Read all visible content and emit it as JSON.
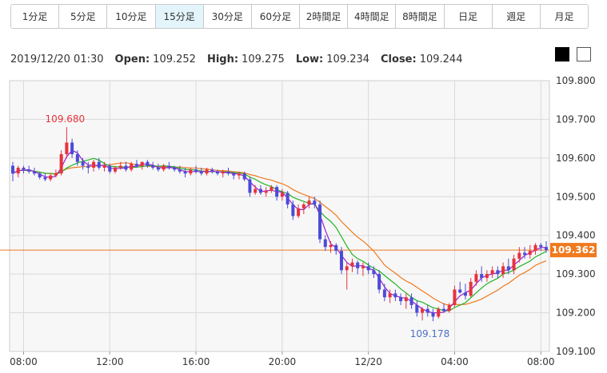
{
  "timeframes": [
    {
      "label": "1分足",
      "active": false
    },
    {
      "label": "5分足",
      "active": false
    },
    {
      "label": "10分足",
      "active": false
    },
    {
      "label": "15分足",
      "active": true
    },
    {
      "label": "30分足",
      "active": false
    },
    {
      "label": "60分足",
      "active": false
    },
    {
      "label": "2時間足",
      "active": false
    },
    {
      "label": "4時間足",
      "active": false
    },
    {
      "label": "8時間足",
      "active": false
    },
    {
      "label": "日足",
      "active": false
    },
    {
      "label": "週足",
      "active": false
    },
    {
      "label": "月足",
      "active": false
    }
  ],
  "ohlc": {
    "datetime": "2019/12/20 01:30",
    "open_label": "Open:",
    "open": "109.252",
    "high_label": "High:",
    "high": "109.275",
    "low_label": "Low:",
    "low": "109.234",
    "close_label": "Close:",
    "close": "109.244"
  },
  "theme_swatches": {
    "dark": "#000000",
    "light": "#ffffff"
  },
  "colors": {
    "up": "#e8323c",
    "down": "#4b4bd8",
    "ma_short": "#9b1fd1",
    "ma_mid": "#22b422",
    "ma_long": "#f07a1e",
    "price_line": "#f07a1e",
    "high_label": "#e8323c",
    "low_label": "#4b6fc8"
  },
  "chart_data": {
    "type": "candlestick",
    "ylim": [
      109.1,
      109.8
    ],
    "yticks": [
      "109.800",
      "109.700",
      "109.600",
      "109.500",
      "109.400",
      "109.300",
      "109.200",
      "109.100"
    ],
    "xticks": [
      {
        "label": "08:00",
        "idx": 2
      },
      {
        "label": "12:00",
        "idx": 18
      },
      {
        "label": "16:00",
        "idx": 34
      },
      {
        "label": "20:00",
        "idx": 50
      },
      {
        "label": "12/20",
        "idx": 66
      },
      {
        "label": "04:00",
        "idx": 82
      },
      {
        "label": "08:00",
        "idx": 98
      }
    ],
    "current_price": "109.362",
    "high_annotation": {
      "label": "109.680",
      "idx": 10,
      "value": 109.68
    },
    "low_annotation": {
      "label": "109.178",
      "idx": 78,
      "value": 109.178
    },
    "candles": [
      [
        109.58,
        109.59,
        109.54,
        109.56
      ],
      [
        109.56,
        109.58,
        109.55,
        109.575
      ],
      [
        109.575,
        109.58,
        109.56,
        109.57
      ],
      [
        109.57,
        109.58,
        109.56,
        109.565
      ],
      [
        109.565,
        109.575,
        109.555,
        109.56
      ],
      [
        109.56,
        109.565,
        109.545,
        109.55
      ],
      [
        109.55,
        109.56,
        109.54,
        109.545
      ],
      [
        109.545,
        109.56,
        109.54,
        109.555
      ],
      [
        109.555,
        109.57,
        109.55,
        109.56
      ],
      [
        109.56,
        109.62,
        109.555,
        109.61
      ],
      [
        109.61,
        109.68,
        109.6,
        109.64
      ],
      [
        109.64,
        109.65,
        109.6,
        109.61
      ],
      [
        109.61,
        109.62,
        109.58,
        109.59
      ],
      [
        109.59,
        109.6,
        109.57,
        109.58
      ],
      [
        109.58,
        109.59,
        109.56,
        109.575
      ],
      [
        109.575,
        109.595,
        109.565,
        109.59
      ],
      [
        109.59,
        109.6,
        109.57,
        109.575
      ],
      [
        109.575,
        109.59,
        109.565,
        109.58
      ],
      [
        109.58,
        109.585,
        109.56,
        109.565
      ],
      [
        109.565,
        109.58,
        109.56,
        109.575
      ],
      [
        109.575,
        109.59,
        109.57,
        109.58
      ],
      [
        109.58,
        109.59,
        109.565,
        109.57
      ],
      [
        109.57,
        109.59,
        109.565,
        109.585
      ],
      [
        109.585,
        109.595,
        109.575,
        109.58
      ],
      [
        109.58,
        109.59,
        109.57,
        109.59
      ],
      [
        109.59,
        109.595,
        109.575,
        109.58
      ],
      [
        109.58,
        109.59,
        109.57,
        109.575
      ],
      [
        109.575,
        109.585,
        109.565,
        109.57
      ],
      [
        109.57,
        109.585,
        109.565,
        109.58
      ],
      [
        109.58,
        109.59,
        109.57,
        109.575
      ],
      [
        109.575,
        109.58,
        109.565,
        109.57
      ],
      [
        109.57,
        109.58,
        109.56,
        109.565
      ],
      [
        109.565,
        109.575,
        109.55,
        109.56
      ],
      [
        109.56,
        109.575,
        109.555,
        109.57
      ],
      [
        109.57,
        109.58,
        109.56,
        109.565
      ],
      [
        109.565,
        109.575,
        109.555,
        109.56
      ],
      [
        109.56,
        109.575,
        109.555,
        109.57
      ],
      [
        109.57,
        109.575,
        109.56,
        109.565
      ],
      [
        109.565,
        109.57,
        109.555,
        109.56
      ],
      [
        109.56,
        109.57,
        109.55,
        109.565
      ],
      [
        109.565,
        109.575,
        109.555,
        109.56
      ],
      [
        109.56,
        109.565,
        109.545,
        109.555
      ],
      [
        109.555,
        109.565,
        109.545,
        109.56
      ],
      [
        109.56,
        109.565,
        109.54,
        109.545
      ],
      [
        109.545,
        109.55,
        109.5,
        109.51
      ],
      [
        109.51,
        109.53,
        109.505,
        109.52
      ],
      [
        109.52,
        109.53,
        109.505,
        109.51
      ],
      [
        109.51,
        109.525,
        109.5,
        109.515
      ],
      [
        109.515,
        109.53,
        109.51,
        109.525
      ],
      [
        109.525,
        109.53,
        109.49,
        109.5
      ],
      [
        109.5,
        109.52,
        109.49,
        109.51
      ],
      [
        109.51,
        109.515,
        109.47,
        109.48
      ],
      [
        109.48,
        109.49,
        109.44,
        109.45
      ],
      [
        109.45,
        109.48,
        109.445,
        109.47
      ],
      [
        109.47,
        109.485,
        109.455,
        109.48
      ],
      [
        109.48,
        109.5,
        109.47,
        109.49
      ],
      [
        109.49,
        109.5,
        109.47,
        109.48
      ],
      [
        109.48,
        109.49,
        109.38,
        109.39
      ],
      [
        109.39,
        109.4,
        109.36,
        109.37
      ],
      [
        109.37,
        109.385,
        109.355,
        109.375
      ],
      [
        109.375,
        109.38,
        109.35,
        109.36
      ],
      [
        109.36,
        109.37,
        109.3,
        109.31
      ],
      [
        109.31,
        109.33,
        109.26,
        109.32
      ],
      [
        109.32,
        109.34,
        109.305,
        109.33
      ],
      [
        109.33,
        109.335,
        109.3,
        109.315
      ],
      [
        109.315,
        109.33,
        109.295,
        109.32
      ],
      [
        109.32,
        109.33,
        109.3,
        109.31
      ],
      [
        109.31,
        109.32,
        109.29,
        109.3
      ],
      [
        109.3,
        109.31,
        109.25,
        109.26
      ],
      [
        109.26,
        109.275,
        109.23,
        109.24
      ],
      [
        109.24,
        109.26,
        109.225,
        109.25
      ],
      [
        109.25,
        109.26,
        109.23,
        109.24
      ],
      [
        109.24,
        109.25,
        109.22,
        109.23
      ],
      [
        109.23,
        109.25,
        109.21,
        109.24
      ],
      [
        109.24,
        109.25,
        109.21,
        109.22
      ],
      [
        109.22,
        109.23,
        109.19,
        109.2
      ],
      [
        109.2,
        109.215,
        109.18,
        109.21
      ],
      [
        109.21,
        109.22,
        109.19,
        109.2
      ],
      [
        109.2,
        109.21,
        109.178,
        109.19
      ],
      [
        109.19,
        109.215,
        109.185,
        109.21
      ],
      [
        109.21,
        109.225,
        109.2,
        109.205
      ],
      [
        109.205,
        109.225,
        109.2,
        109.22
      ],
      [
        109.22,
        109.27,
        109.215,
        109.26
      ],
      [
        109.26,
        109.28,
        109.25,
        109.252
      ],
      [
        109.252,
        109.275,
        109.234,
        109.244
      ],
      [
        109.244,
        109.29,
        109.24,
        109.28
      ],
      [
        109.28,
        109.31,
        109.27,
        109.3
      ],
      [
        109.3,
        109.32,
        109.28,
        109.29
      ],
      [
        109.29,
        109.31,
        109.28,
        109.3
      ],
      [
        109.3,
        109.32,
        109.29,
        109.31
      ],
      [
        109.31,
        109.32,
        109.29,
        109.3
      ],
      [
        109.3,
        109.33,
        109.29,
        109.32
      ],
      [
        109.32,
        109.34,
        109.3,
        109.31
      ],
      [
        109.31,
        109.35,
        109.3,
        109.34
      ],
      [
        109.34,
        109.37,
        109.33,
        109.355
      ],
      [
        109.355,
        109.37,
        109.34,
        109.35
      ],
      [
        109.35,
        109.375,
        109.34,
        109.36
      ],
      [
        109.36,
        109.38,
        109.35,
        109.375
      ],
      [
        109.375,
        109.38,
        109.36,
        109.37
      ],
      [
        109.37,
        109.385,
        109.355,
        109.362
      ]
    ]
  }
}
